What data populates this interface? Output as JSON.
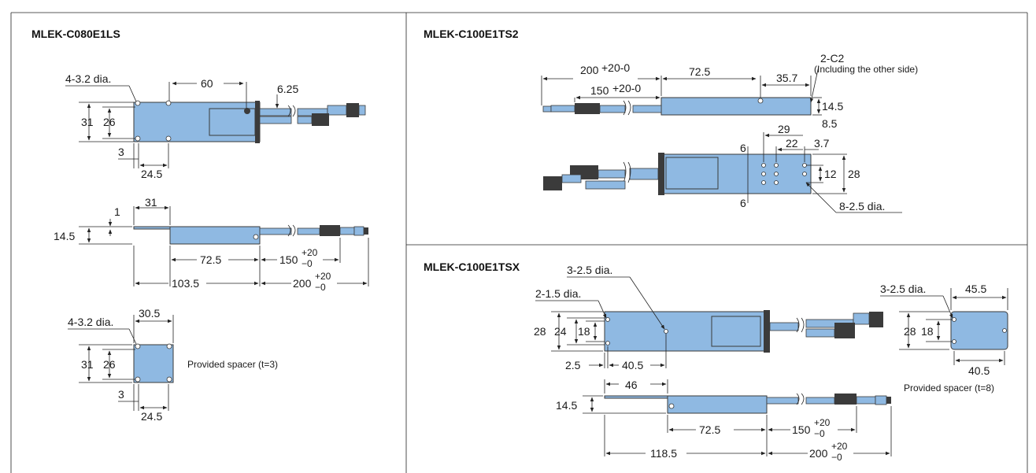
{
  "panels": {
    "c080": {
      "title": "MLEK-C080E1LS",
      "dims": {
        "hole4": "4-3.2 dia.",
        "d60": "60",
        "d625": "6.25",
        "d31a": "31",
        "d26a": "26",
        "d3a": "3",
        "d245a": "24.5",
        "d1": "1",
        "d31b": "31",
        "d145": "14.5",
        "d725": "72.5",
        "d150": "150",
        "d1035": "103.5",
        "d200": "200",
        "tol_up": "+20",
        "tol_dn": "−0",
        "hole4b": "4-3.2 dia.",
        "d305": "30.5",
        "d31c": "31",
        "d26c": "26",
        "d3c": "3",
        "d245c": "24.5"
      },
      "spacer_note": "Provided spacer (t=3)"
    },
    "ts2": {
      "title": "MLEK-C100E1TS2",
      "dims": {
        "d200": "200",
        "tol200": "+20-0",
        "d725": "72.5",
        "d357": "35.7",
        "c2": "2-C2",
        "c2note": "(Including the other side)",
        "d150": "150",
        "tol150": "+20-0",
        "d145": "14.5",
        "d85": "8.5",
        "d29": "29",
        "d22": "22",
        "d37": "3.7",
        "d6a": "6",
        "d12": "12",
        "d28": "28",
        "d6b": "6",
        "hole8": "8-2.5 dia."
      }
    },
    "tsx": {
      "title": "MLEK-C100E1TSX",
      "dims": {
        "hole3a": "3-2.5 dia.",
        "hole2": "2-1.5 dia.",
        "d28": "28",
        "d24": "24",
        "d18": "18",
        "d25": "2.5",
        "d405": "40.5",
        "d46": "46",
        "d145": "14.5",
        "d725": "72.5",
        "d150": "150",
        "d1185": "118.5",
        "d200": "200",
        "tol_up": "+20",
        "tol_dn": "−0",
        "hole3b": "3-2.5 dia.",
        "d455": "45.5",
        "d28s": "28",
        "d18s": "18",
        "d405s": "40.5"
      },
      "spacer_note": "Provided spacer (t=8)"
    }
  }
}
